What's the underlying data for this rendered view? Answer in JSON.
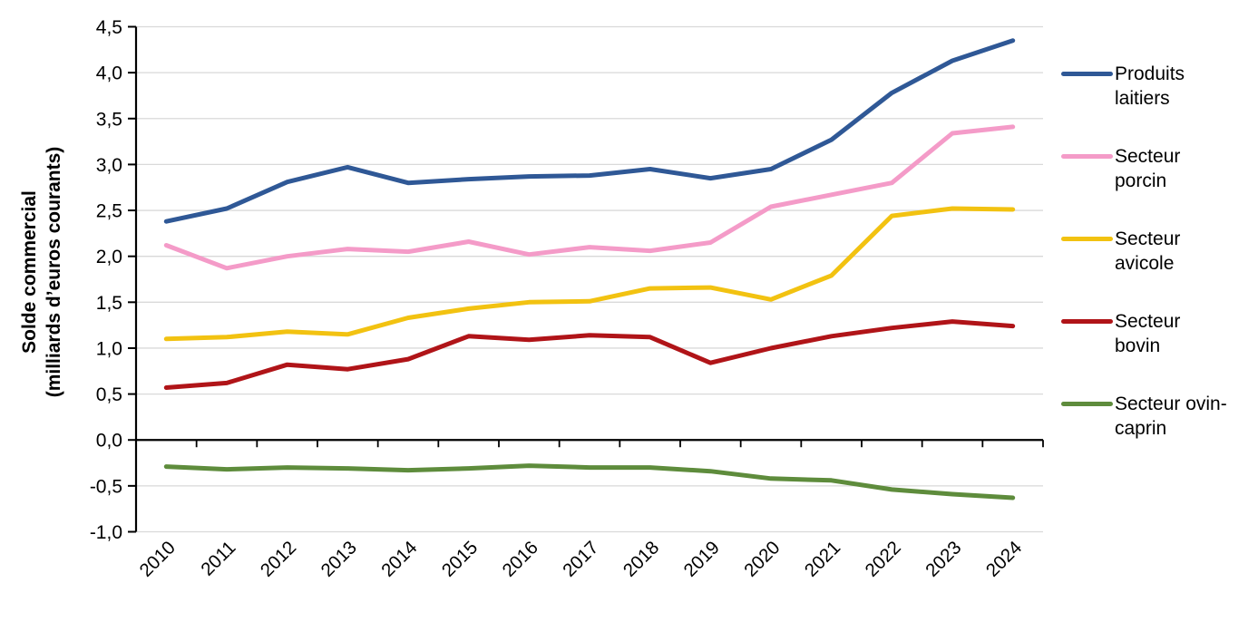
{
  "chart_data": {
    "type": "line",
    "title": "",
    "ylabel": "Solde commercial (milliards d’euros courants)",
    "ylabel_line1": "Solde commercial",
    "ylabel_line2": "(milliards d’euros courants)",
    "x_categories": [
      "2010",
      "2011",
      "2012",
      "2013",
      "2014",
      "2015",
      "2016",
      "2017",
      "2018",
      "2019",
      "2020",
      "2021",
      "2022",
      "2023",
      "2024"
    ],
    "ylim": [
      -1.0,
      4.5
    ],
    "ytick_step": 0.5,
    "ytick_labels_top_to_bottom": [
      "4,5",
      "4,0",
      "3,5",
      "3,0",
      "2,5",
      "2,0",
      "1,5",
      "1,0",
      "0,5",
      "0,0",
      "-0,5",
      "-1,0"
    ],
    "grid": true,
    "legend_position": "right",
    "colors": {
      "axis": "#000000",
      "gridline": "#D9D9D9",
      "background": "#FFFFFF"
    },
    "series": [
      {
        "id": "produits-laitiers",
        "name": "Produits laitiers",
        "legend_line1": "Produits",
        "legend_line2": "laitiers",
        "color": "#2F5896",
        "values": [
          2.38,
          2.52,
          2.81,
          2.97,
          2.8,
          2.84,
          2.87,
          2.88,
          2.95,
          2.85,
          2.95,
          3.27,
          3.78,
          4.13,
          4.35
        ]
      },
      {
        "id": "secteur-porcin",
        "name": "Secteur porcin",
        "legend_line1": "Secteur",
        "legend_line2": "porcin",
        "color": "#F49BC8",
        "values": [
          2.12,
          1.87,
          2.0,
          2.08,
          2.05,
          2.16,
          2.02,
          2.1,
          2.06,
          2.15,
          2.54,
          2.67,
          2.8,
          3.34,
          3.41
        ]
      },
      {
        "id": "secteur-avicole",
        "name": "Secteur avicole",
        "legend_line1": "Secteur",
        "legend_line2": "avicole",
        "color": "#F2C211",
        "values": [
          1.1,
          1.12,
          1.18,
          1.15,
          1.33,
          1.43,
          1.5,
          1.51,
          1.65,
          1.66,
          1.53,
          1.79,
          2.44,
          2.52,
          2.51
        ]
      },
      {
        "id": "secteur-bovin",
        "name": "Secteur bovin",
        "legend_line1": "Secteur",
        "legend_line2": "bovin",
        "color": "#B01418",
        "values": [
          0.57,
          0.62,
          0.82,
          0.77,
          0.88,
          1.13,
          1.09,
          1.14,
          1.12,
          0.84,
          1.0,
          1.13,
          1.22,
          1.29,
          1.24
        ]
      },
      {
        "id": "secteur-ovin-caprin",
        "name": "Secteur ovin-caprin",
        "legend_line1": "Secteur ovin-",
        "legend_line2": "caprin",
        "color": "#5E8C3C",
        "values": [
          -0.29,
          -0.32,
          -0.3,
          -0.31,
          -0.33,
          -0.31,
          -0.28,
          -0.3,
          -0.3,
          -0.34,
          -0.42,
          -0.44,
          -0.54,
          -0.59,
          -0.63
        ]
      }
    ]
  }
}
